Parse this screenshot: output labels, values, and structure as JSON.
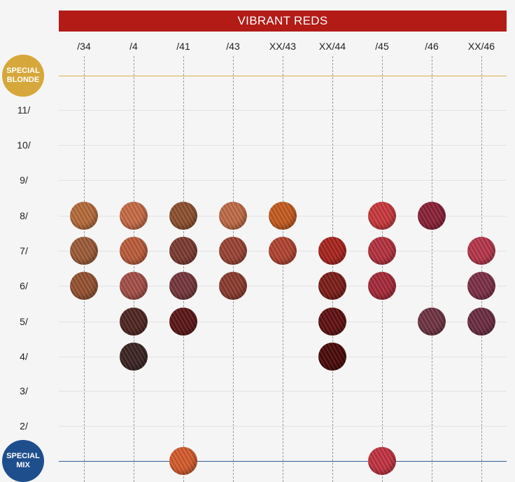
{
  "header": {
    "title": "VIBRANT REDS"
  },
  "columns": [
    "/34",
    "/4",
    "/41",
    "/43",
    "XX/43",
    "XX/44",
    "/45",
    "/46",
    "XX/46"
  ],
  "rows": [
    "11/",
    "10/",
    "9/",
    "8/",
    "7/",
    "6/",
    "5/",
    "4/",
    "3/",
    "2/"
  ],
  "badges": {
    "special_blonde": {
      "line1": "SPECIAL",
      "line2": "BLONDE",
      "color": "#d6a73a"
    },
    "special_mix": {
      "line1": "SPECIAL",
      "line2": "MIX",
      "color": "#1f4e8c"
    }
  },
  "swatches": [
    {
      "col": "/34",
      "row": "8/",
      "color": "#b56a3a"
    },
    {
      "col": "/34",
      "row": "7/",
      "color": "#9c5a35"
    },
    {
      "col": "/34",
      "row": "6/",
      "color": "#94502f"
    },
    {
      "col": "/4",
      "row": "8/",
      "color": "#c66a45"
    },
    {
      "col": "/4",
      "row": "7/",
      "color": "#bb5b3a"
    },
    {
      "col": "/4",
      "row": "6/",
      "color": "#a34e46"
    },
    {
      "col": "/4",
      "row": "5/",
      "color": "#4e2420"
    },
    {
      "col": "/4",
      "row": "4/",
      "color": "#3a2320"
    },
    {
      "col": "/41",
      "row": "8/",
      "color": "#8c4f2e"
    },
    {
      "col": "/41",
      "row": "7/",
      "color": "#7b3a30"
    },
    {
      "col": "/41",
      "row": "6/",
      "color": "#74363a"
    },
    {
      "col": "/41",
      "row": "5/",
      "color": "#5a1514"
    },
    {
      "col": "/43",
      "row": "8/",
      "color": "#c06a45"
    },
    {
      "col": "/43",
      "row": "7/",
      "color": "#9a4232"
    },
    {
      "col": "/43",
      "row": "6/",
      "color": "#8a3a2c"
    },
    {
      "col": "XX/43",
      "row": "8/",
      "color": "#c45a1e"
    },
    {
      "col": "XX/43",
      "row": "7/",
      "color": "#b04230"
    },
    {
      "col": "XX/44",
      "row": "7/",
      "color": "#a8221d"
    },
    {
      "col": "XX/44",
      "row": "6/",
      "color": "#7a1c17"
    },
    {
      "col": "XX/44",
      "row": "5/",
      "color": "#5e0f0e"
    },
    {
      "col": "XX/44",
      "row": "4/",
      "color": "#480807"
    },
    {
      "col": "/45",
      "row": "8/",
      "color": "#c8373b"
    },
    {
      "col": "/45",
      "row": "7/",
      "color": "#b3303d"
    },
    {
      "col": "/45",
      "row": "6/",
      "color": "#a52838"
    },
    {
      "col": "/46",
      "row": "8/",
      "color": "#8a1f36"
    },
    {
      "col": "/46",
      "row": "5/",
      "color": "#6e3242"
    },
    {
      "col": "XX/46",
      "row": "7/",
      "color": "#b6344a"
    },
    {
      "col": "XX/46",
      "row": "6/",
      "color": "#7c2e45"
    },
    {
      "col": "XX/46",
      "row": "5/",
      "color": "#6b2b40"
    },
    {
      "col": "/41",
      "row": "special-mix",
      "color": "#d45a2a"
    },
    {
      "col": "/45",
      "row": "special-mix",
      "color": "#c1313f"
    }
  ]
}
